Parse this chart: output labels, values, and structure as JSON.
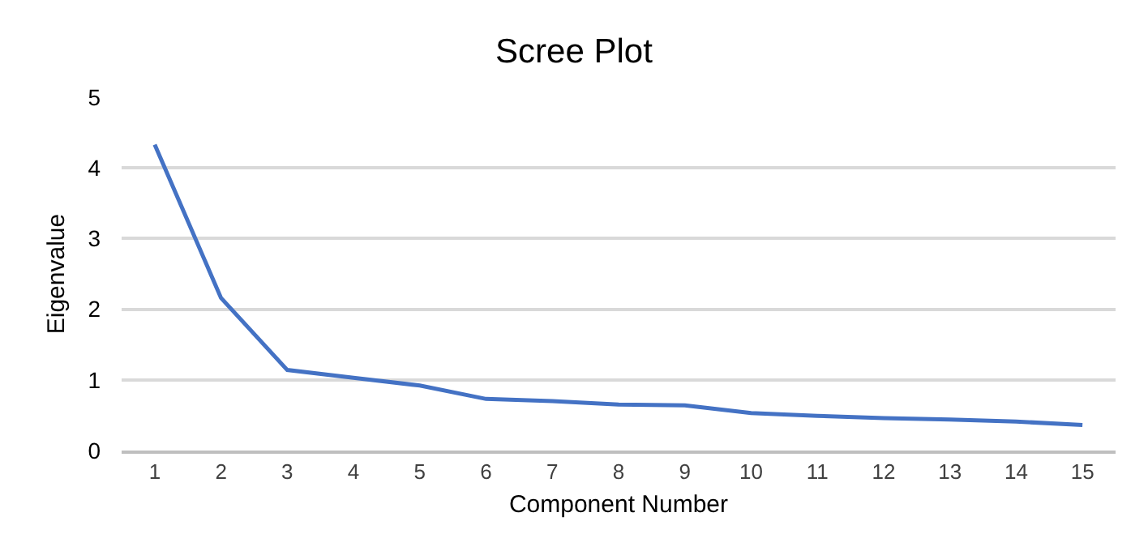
{
  "chart_data": {
    "type": "line",
    "title": "Scree Plot",
    "xlabel": "Component Number",
    "ylabel": "Eigenvalue",
    "x": [
      1,
      2,
      3,
      4,
      5,
      6,
      7,
      8,
      9,
      10,
      11,
      12,
      13,
      14,
      15
    ],
    "series": [
      {
        "color": "#4472c4",
        "values": [
          4.33,
          2.16,
          1.14,
          1.03,
          0.92,
          0.73,
          0.7,
          0.65,
          0.64,
          0.53,
          0.49,
          0.46,
          0.44,
          0.41,
          0.36
        ]
      }
    ],
    "xlim": [
      0.5,
      15.5
    ],
    "xticks": [
      1,
      2,
      3,
      4,
      5,
      6,
      7,
      8,
      9,
      10,
      11,
      12,
      13,
      14,
      15
    ],
    "ylim": [
      0,
      5
    ],
    "yticks": [
      0,
      1,
      2,
      3,
      4,
      5
    ],
    "grid": "y",
    "marker": "none",
    "line_style": "solid"
  }
}
